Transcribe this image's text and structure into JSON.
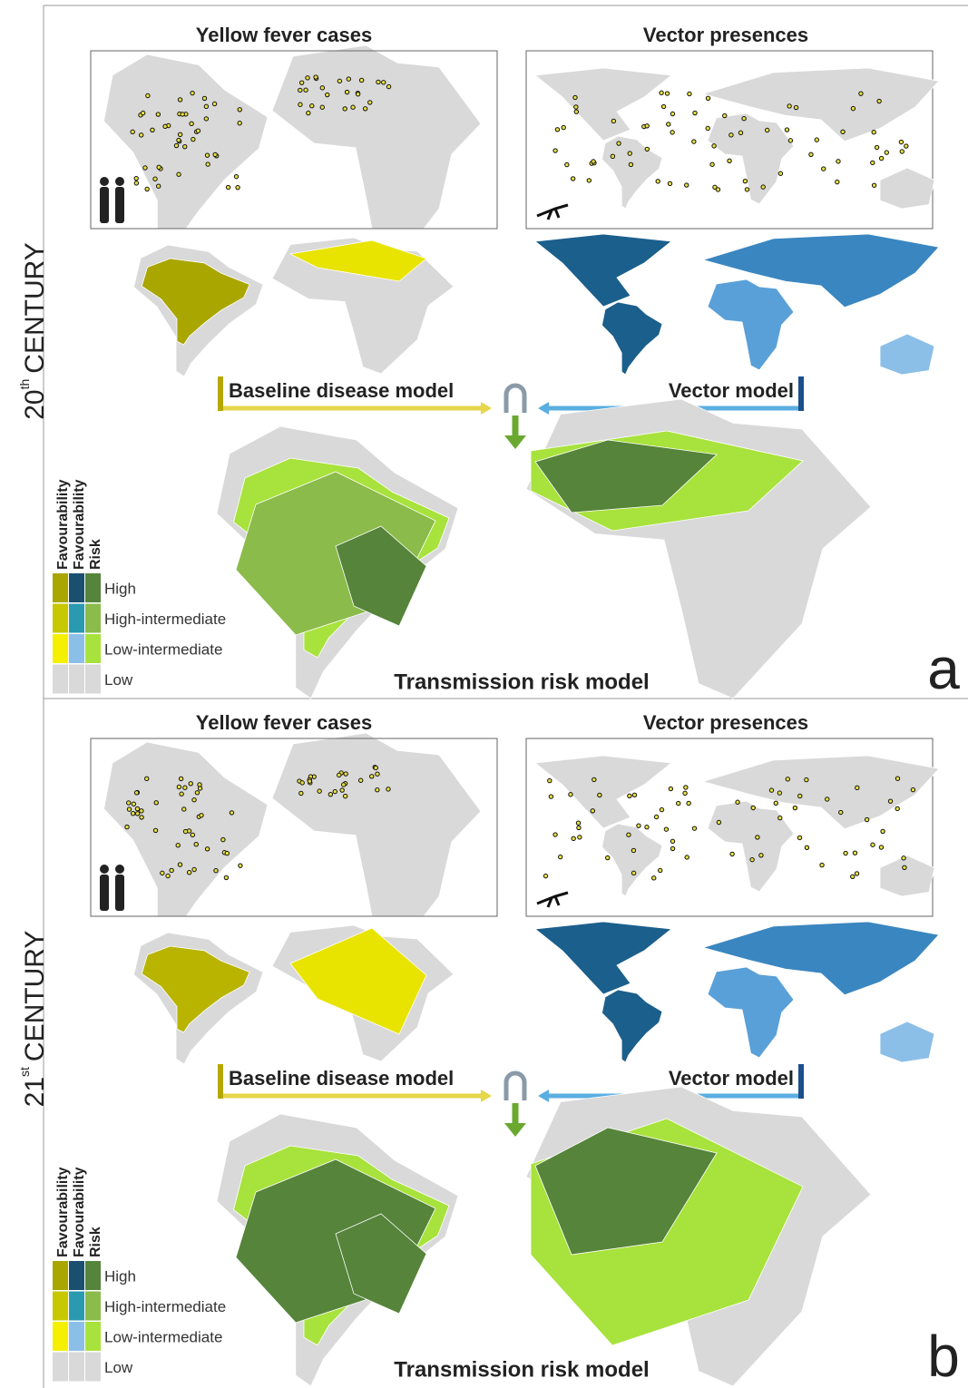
{
  "panels": [
    {
      "century": {
        "number": "20",
        "suffix": "th",
        "word": "CENTURY"
      },
      "letter": "a",
      "cases_title": "Yellow fever cases",
      "vector_title": "Vector presences",
      "baseline_label": "Baseline disease model",
      "vector_model_label": "Vector model",
      "risk_title": "Transmission risk model",
      "legend": {
        "headers": [
          "Favourability",
          "Favourability",
          "Risk"
        ],
        "levels": [
          "High",
          "High-intermediate",
          "Low-intermediate",
          "Low"
        ]
      }
    },
    {
      "century": {
        "number": "21",
        "suffix": "st",
        "word": "CENTURY"
      },
      "letter": "b",
      "cases_title": "Yellow fever cases",
      "vector_title": "Vector presences",
      "baseline_label": "Baseline disease model",
      "vector_model_label": "Vector model",
      "risk_title": "Transmission risk model",
      "legend": {
        "headers": [
          "Favourability",
          "Favourability",
          "Risk"
        ],
        "levels": [
          "High",
          "High-intermediate",
          "Low-intermediate",
          "Low"
        ]
      }
    }
  ]
}
